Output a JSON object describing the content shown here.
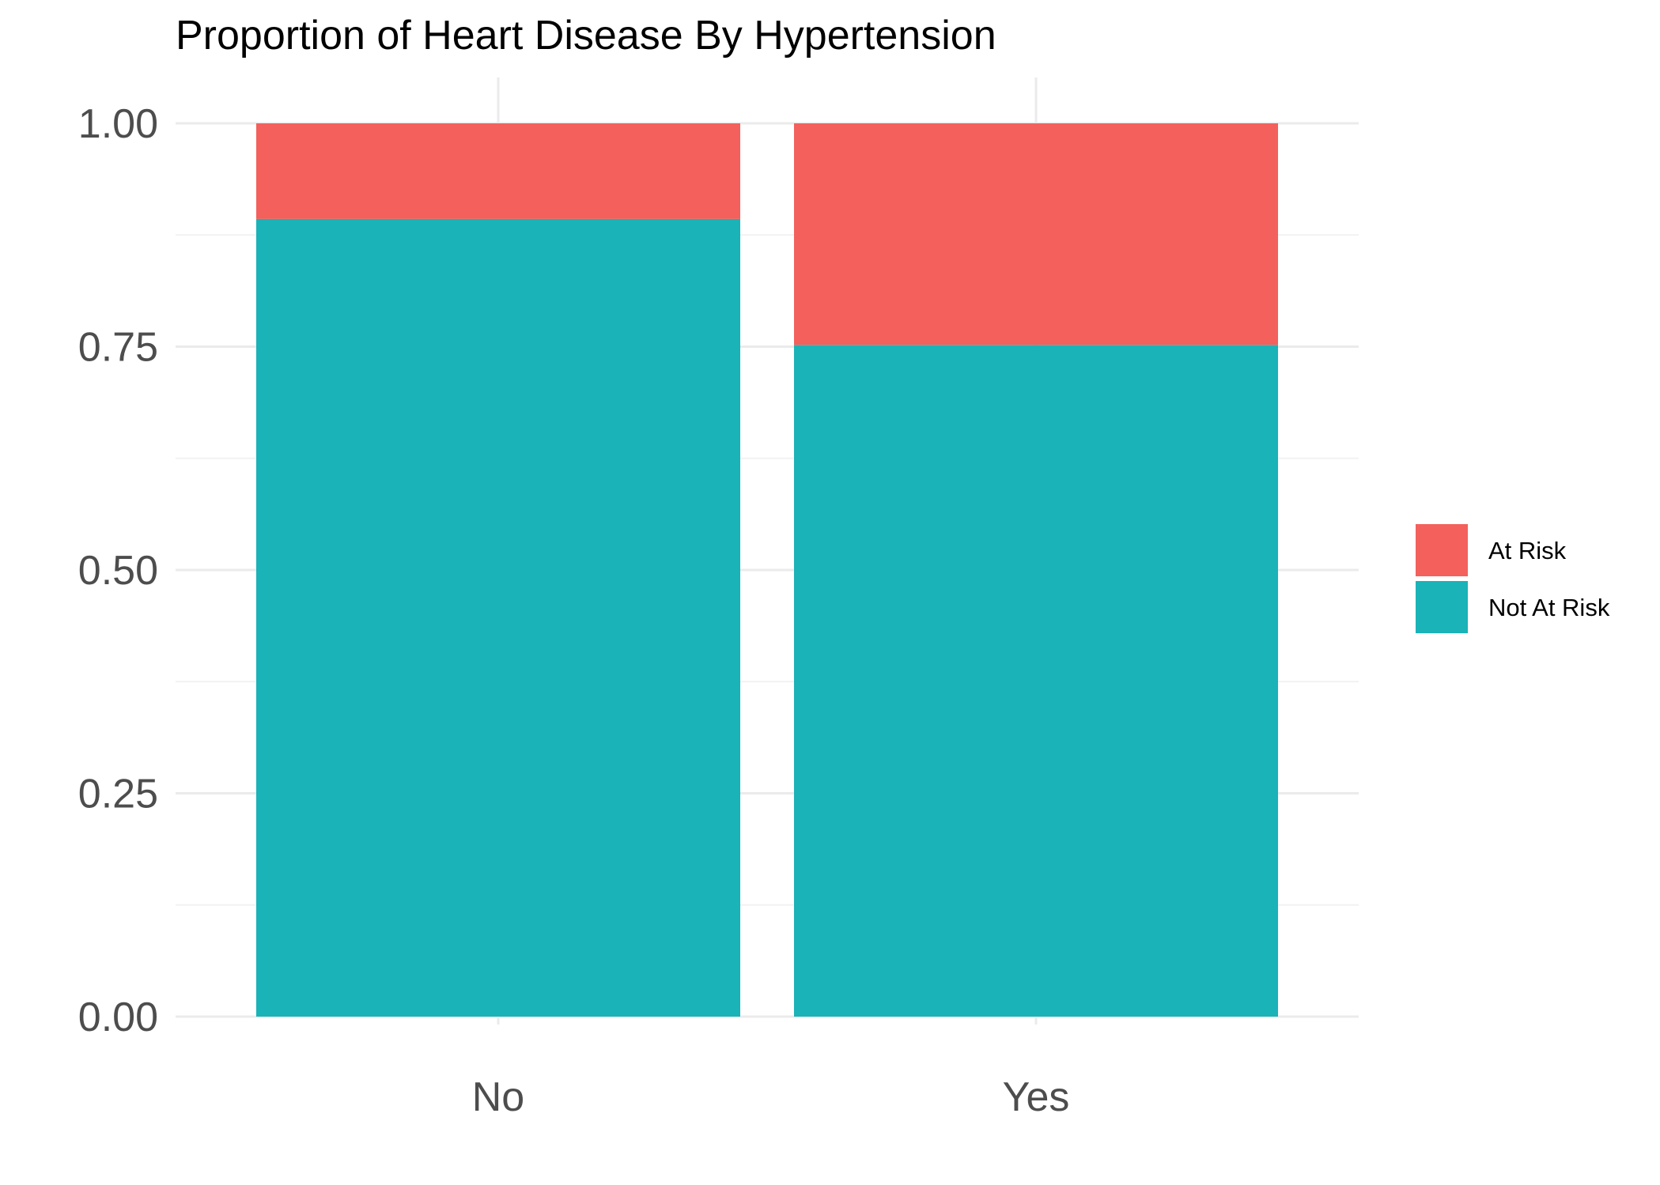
{
  "chart_data": {
    "type": "bar",
    "stacked": true,
    "title": "Proportion of Heart Disease By Hypertension",
    "xlabel": "",
    "ylabel": "",
    "categories": [
      "No",
      "Yes"
    ],
    "ylim": [
      0,
      1
    ],
    "yticks": [
      0,
      0.25,
      0.5,
      0.75,
      1
    ],
    "ytick_labels": [
      "0.00",
      "0.25",
      "0.50",
      "0.75",
      "1.00"
    ],
    "series": [
      {
        "name": "Not At Risk",
        "color": "#19b3b8",
        "values": [
          0.893,
          0.752
        ]
      },
      {
        "name": "At Risk",
        "color": "#f4605c",
        "values": [
          0.107,
          0.248
        ]
      }
    ],
    "legend_order": [
      "At Risk",
      "Not At Risk"
    ],
    "legend_position": "right",
    "grid": true
  }
}
